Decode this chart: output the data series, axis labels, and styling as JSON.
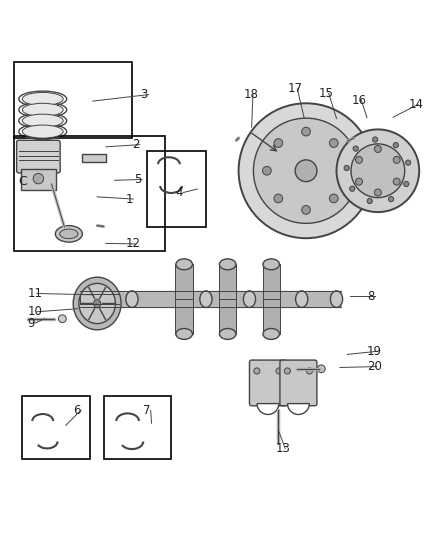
{
  "background_color": "#ffffff",
  "line_color": "#444444",
  "label_color": "#222222",
  "font_size_label": 8.5,
  "label_positions": {
    "1": [
      0.285,
      0.655,
      0.22,
      0.66
    ],
    "2": [
      0.3,
      0.78,
      0.24,
      0.775
    ],
    "3": [
      0.32,
      0.895,
      0.21,
      0.88
    ],
    "4": [
      0.4,
      0.67,
      0.45,
      0.678
    ],
    "5": [
      0.305,
      0.7,
      0.26,
      0.698
    ],
    "6": [
      0.165,
      0.17,
      0.148,
      0.135
    ],
    "7": [
      0.325,
      0.17,
      0.345,
      0.14
    ],
    "8": [
      0.84,
      0.432,
      0.8,
      0.432
    ],
    "9": [
      0.06,
      0.37,
      0.098,
      0.38
    ],
    "10": [
      0.06,
      0.396,
      0.175,
      0.403
    ],
    "11": [
      0.06,
      0.438,
      0.21,
      0.435
    ],
    "12": [
      0.285,
      0.552,
      0.24,
      0.553
    ],
    "13": [
      0.63,
      0.082,
      0.638,
      0.12
    ],
    "14": [
      0.935,
      0.872,
      0.9,
      0.843
    ],
    "15": [
      0.73,
      0.898,
      0.77,
      0.84
    ],
    "16": [
      0.805,
      0.882,
      0.84,
      0.842
    ],
    "17": [
      0.658,
      0.908,
      0.696,
      0.84
    ],
    "18": [
      0.556,
      0.895,
      0.575,
      0.82
    ],
    "19": [
      0.84,
      0.305,
      0.795,
      0.298
    ],
    "20": [
      0.84,
      0.27,
      0.778,
      0.268
    ]
  }
}
